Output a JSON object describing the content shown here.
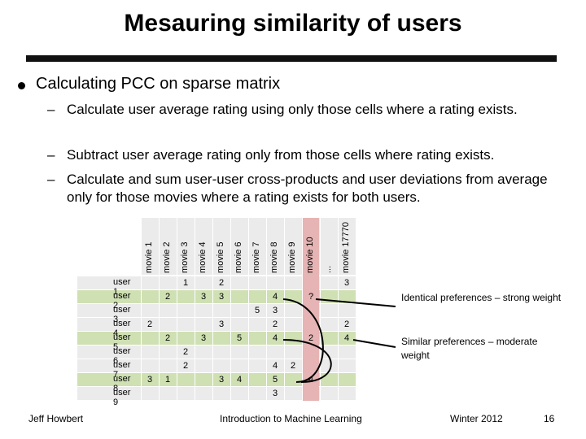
{
  "slide": {
    "title": "Mesauring similarity of users",
    "bullet": "Calculating PCC on sparse matrix",
    "subbullets": [
      "Calculate user average rating using only those cells where a rating exists.",
      "Subtract user average rating only from those cells where rating exists.",
      "Calculate and sum user-user cross-products and user deviations from average only for those movies where a rating exists for both users."
    ],
    "dash": "–"
  },
  "matrix": {
    "columns": [
      "movie 1",
      "movie 2",
      "movie 3",
      "movie 4",
      "movie 5",
      "movie 6",
      "movie 7",
      "movie 8",
      "movie 9",
      "movie 10",
      "...",
      "movie 17770"
    ],
    "rows": [
      "user 1",
      "user 2",
      "user 3",
      "user 4",
      "user 5",
      "user 6",
      "user 7",
      "user 8",
      "user 9"
    ],
    "cells": [
      [
        "",
        "",
        "1",
        "",
        "2",
        "",
        "",
        "",
        "",
        "",
        "",
        "3"
      ],
      [
        "",
        "2",
        "",
        "3",
        "3",
        "",
        "",
        "4",
        "",
        "?",
        "",
        ""
      ],
      [
        "",
        "",
        "",
        "",
        "",
        "",
        "5",
        "3",
        "",
        "",
        "",
        ""
      ],
      [
        "2",
        "",
        "",
        "",
        "3",
        "",
        "",
        "2",
        "",
        "",
        "",
        "2"
      ],
      [
        "",
        "2",
        "",
        "3",
        "",
        "5",
        "",
        "4",
        "",
        "2",
        "",
        "4"
      ],
      [
        "",
        "",
        "2",
        "",
        "",
        "",
        "",
        "",
        "",
        "",
        "",
        ""
      ],
      [
        "",
        "",
        "2",
        "",
        "",
        "",
        "",
        "4",
        "2",
        "",
        "",
        ""
      ],
      [
        "3",
        "1",
        "",
        "",
        "3",
        "4",
        "",
        "5",
        "",
        "4",
        "",
        ""
      ],
      [
        "",
        "",
        "",
        "",
        "",
        "",
        "",
        "3",
        "",
        "",
        "",
        ""
      ]
    ],
    "colors": {
      "pink": "#e6b4b4",
      "green": "#cfe0b3",
      "grid": "#ffffff",
      "bg": "#ebebeb"
    }
  },
  "notes": {
    "identical": "Identical preferences – strong weight",
    "similar": "Similar preferences – moderate weight"
  },
  "footer": {
    "author": "Jeff Howbert",
    "course": "Introduction to Machine Learning",
    "term": "Winter 2012",
    "page": "16"
  }
}
